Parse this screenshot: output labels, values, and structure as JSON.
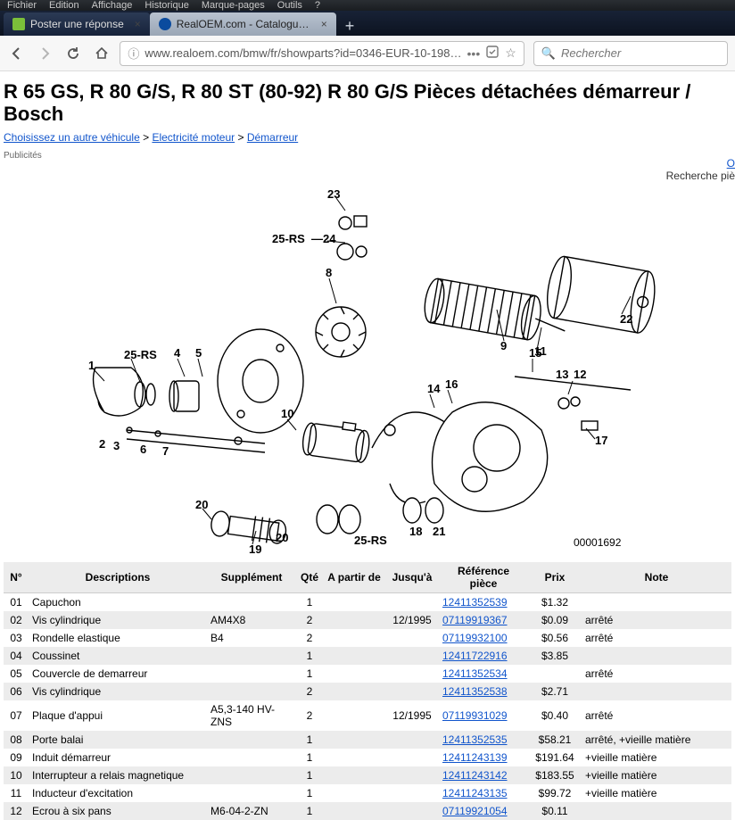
{
  "menubar": [
    "Fichier",
    "Edition",
    "Affichage",
    "Historique",
    "Marque-pages",
    "Outils",
    "?"
  ],
  "tabs": [
    {
      "label": "Poster une réponse",
      "favicon_bg": "#7bbf3a",
      "active": false
    },
    {
      "label": "RealOEM.com - Catalogue En l…",
      "favicon_bg": "#0a4b9e",
      "active": true
    }
  ],
  "url": "www.realoem.com/bmw/fr/showparts?id=0346-EUR-10-198…",
  "search_placeholder": "Rechercher",
  "title": "R 65 GS, R 80 G/S, R 80 ST (80-92) R 80 G/S Pièces détachées démarreur / Bosch",
  "side_links": {
    "options": "O",
    "search": "Recherche piè"
  },
  "breadcrumbs": [
    {
      "label": "Choisissez un autre véhicule"
    },
    {
      "label": "Electricité moteur"
    },
    {
      "label": "Démarreur"
    }
  ],
  "pub_label": "Publicités",
  "diagram_id": "00001692",
  "callouts": [
    "1",
    "2",
    "3",
    "4",
    "5",
    "6",
    "7",
    "8",
    "9",
    "10",
    "11",
    "12",
    "13",
    "14",
    "15",
    "16",
    "17",
    "18",
    "19",
    "20",
    "21",
    "22",
    "23",
    "24",
    "25-RS",
    "25-RS",
    "25-RS"
  ],
  "table": {
    "headers": [
      "N°",
      "Descriptions",
      "Supplément",
      "Qté",
      "A partir de",
      "Jusqu'à",
      "Référence pièce",
      "Prix",
      "Note"
    ],
    "rows": [
      {
        "no": "01",
        "desc": "Capuchon",
        "supp": "",
        "qty": "1",
        "from": "",
        "to": "",
        "ref": "12411352539",
        "price": "$1.32",
        "note": ""
      },
      {
        "no": "02",
        "desc": "Vis cylindrique",
        "supp": "AM4X8",
        "qty": "2",
        "from": "",
        "to": "12/1995",
        "ref": "07119919367",
        "price": "$0.09",
        "note": "arrêté"
      },
      {
        "no": "03",
        "desc": "Rondelle elastique",
        "supp": "B4",
        "qty": "2",
        "from": "",
        "to": "",
        "ref": "07119932100",
        "price": "$0.56",
        "note": "arrêté"
      },
      {
        "no": "04",
        "desc": "Coussinet",
        "supp": "",
        "qty": "1",
        "from": "",
        "to": "",
        "ref": "12411722916",
        "price": "$3.85",
        "note": ""
      },
      {
        "no": "05",
        "desc": "Couvercle de demarreur",
        "supp": "",
        "qty": "1",
        "from": "",
        "to": "",
        "ref": "12411352534",
        "price": "",
        "note": "arrêté"
      },
      {
        "no": "06",
        "desc": "Vis cylindrique",
        "supp": "",
        "qty": "2",
        "from": "",
        "to": "",
        "ref": "12411352538",
        "price": "$2.71",
        "note": ""
      },
      {
        "no": "07",
        "desc": "Plaque d'appui",
        "supp": "A5,3-140 HV-ZNS",
        "qty": "2",
        "from": "",
        "to": "12/1995",
        "ref": "07119931029",
        "price": "$0.40",
        "note": "arrêté"
      },
      {
        "no": "08",
        "desc": "Porte balai",
        "supp": "",
        "qty": "1",
        "from": "",
        "to": "",
        "ref": "12411352535",
        "price": "$58.21",
        "note": "arrêté, +vieille matière"
      },
      {
        "no": "09",
        "desc": "Induit démarreur",
        "supp": "",
        "qty": "1",
        "from": "",
        "to": "",
        "ref": "12411243139",
        "price": "$191.64",
        "note": "+vieille matière"
      },
      {
        "no": "10",
        "desc": "Interrupteur a relais magnetique",
        "supp": "",
        "qty": "1",
        "from": "",
        "to": "",
        "ref": "12411243142",
        "price": "$183.55",
        "note": "+vieille matière"
      },
      {
        "no": "11",
        "desc": "Inducteur d'excitation",
        "supp": "",
        "qty": "1",
        "from": "",
        "to": "",
        "ref": "12411243135",
        "price": "$99.72",
        "note": "+vieille matière"
      },
      {
        "no": "12",
        "desc": "Ecrou à six pans",
        "supp": "M6-04-2-ZN",
        "qty": "1",
        "from": "",
        "to": "",
        "ref": "07119921054",
        "price": "$0.11",
        "note": ""
      }
    ]
  }
}
